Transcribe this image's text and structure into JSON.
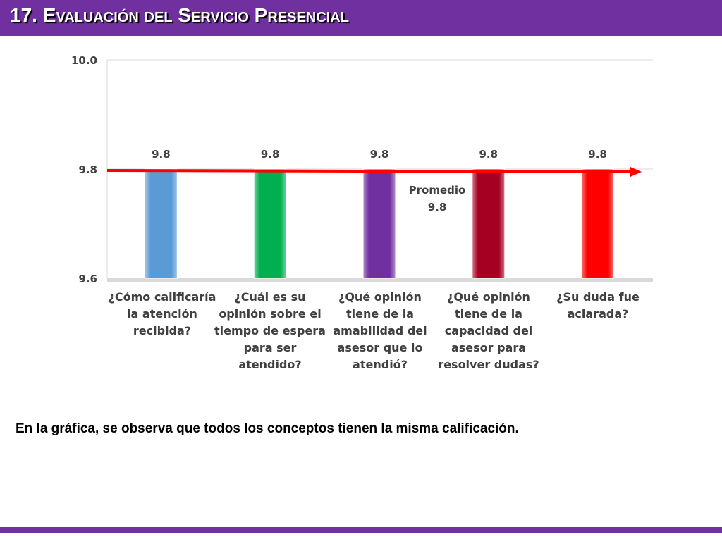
{
  "slide": {
    "title": "17. Evaluación del Servicio Presencial",
    "caption": "En la gráfica, se observa que todos los conceptos tienen la misma calificación."
  },
  "chart_data": {
    "type": "bar",
    "title": "",
    "xlabel": "",
    "ylabel": "",
    "ylim": [
      9.6,
      10.0
    ],
    "yticks": [
      "9.6",
      "9.8",
      "10.0"
    ],
    "grid": true,
    "legend": "none",
    "categories": [
      "¿Cómo calificaría la atención recibida?",
      "¿Cuál es su opinión sobre el tiempo de espera para ser atendido?",
      "¿Qué opinión tiene de la amabilidad del asesor que lo atendió?",
      "¿Qué opinión tiene de la capacidad del asesor para resolver dudas?",
      "¿Su duda fue aclarada?"
    ],
    "values": [
      9.8,
      9.8,
      9.8,
      9.8,
      9.8
    ],
    "data_labels": [
      "9.8",
      "9.8",
      "9.8",
      "9.8",
      "9.8"
    ],
    "bar_colors": [
      "#5b9bd5",
      "#00b050",
      "#7030a0",
      "#a50021",
      "#ff0000"
    ],
    "average": {
      "value": 9.8,
      "label": "Promedio",
      "value_label": "9.8",
      "color": "#ff0000"
    }
  }
}
